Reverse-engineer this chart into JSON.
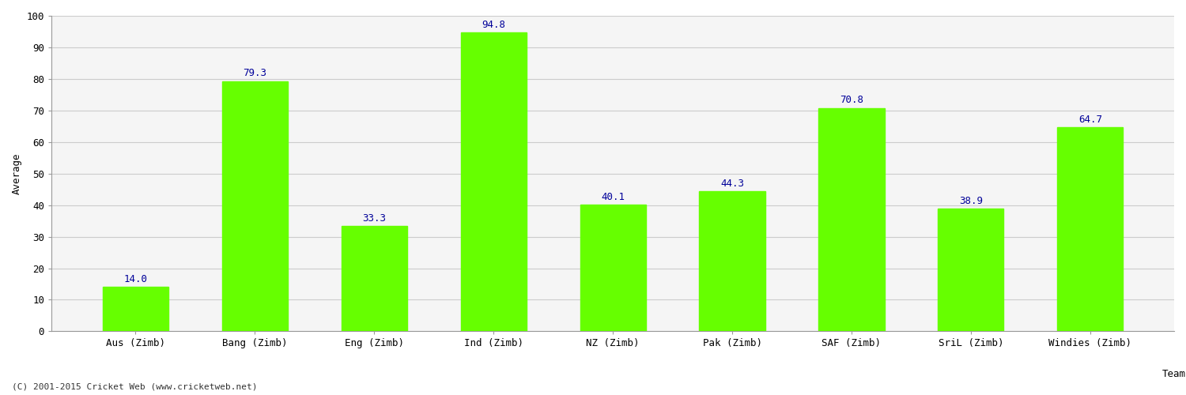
{
  "categories": [
    "Aus (Zimb)",
    "Bang (Zimb)",
    "Eng (Zimb)",
    "Ind (Zimb)",
    "NZ (Zimb)",
    "Pak (Zimb)",
    "SAF (Zimb)",
    "SriL (Zimb)",
    "Windies (Zimb)"
  ],
  "values": [
    14.0,
    79.3,
    33.3,
    94.8,
    40.1,
    44.3,
    70.8,
    38.9,
    64.7
  ],
  "bar_color": "#66ff00",
  "bar_edge_color": "#66ff00",
  "label_color": "#000099",
  "xlabel": "Team",
  "ylabel": "Average",
  "ylim": [
    0,
    100
  ],
  "yticks": [
    0,
    10,
    20,
    30,
    40,
    50,
    60,
    70,
    80,
    90,
    100
  ],
  "grid_color": "#cccccc",
  "background_color": "#ffffff",
  "plot_bg_color": "#f5f5f5",
  "label_fontsize": 9,
  "axis_tick_fontsize": 9,
  "xlabel_fontsize": 9,
  "ylabel_fontsize": 9,
  "footer": "(C) 2001-2015 Cricket Web (www.cricketweb.net)",
  "bar_width": 0.55
}
